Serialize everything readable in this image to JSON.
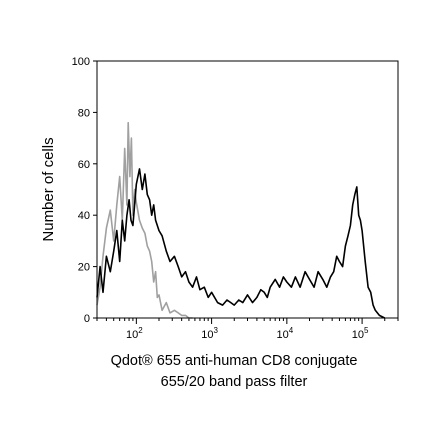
{
  "chart_data": {
    "type": "line",
    "title": "",
    "xlabel": "Qdot® 655 anti-human CD8 conjugate",
    "xlabel_line2": "655/20 band pass filter",
    "ylabel": "Number of cells",
    "xscale": "log",
    "xlim": [
      30,
      300000
    ],
    "ylim": [
      0,
      100
    ],
    "y_ticks": [
      0,
      20,
      40,
      60,
      80,
      100
    ],
    "x_ticks": [
      {
        "value": 100,
        "base": "10",
        "exp": "2"
      },
      {
        "value": 1000,
        "base": "10",
        "exp": "3"
      },
      {
        "value": 10000,
        "base": "10",
        "exp": "4"
      },
      {
        "value": 100000,
        "base": "10",
        "exp": "5"
      }
    ],
    "grid": false,
    "legend": "none",
    "series": [
      {
        "color": "#a0a0a0",
        "x": [
          30,
          33,
          36,
          40,
          45,
          50,
          55,
          60,
          65,
          70,
          75,
          78,
          82,
          86,
          90,
          95,
          100,
          110,
          120,
          130,
          140,
          150,
          160,
          170,
          180,
          190,
          200,
          220,
          250,
          280,
          320,
          360,
          400,
          450,
          500,
          560
        ],
        "y": [
          5,
          12,
          24,
          35,
          42,
          30,
          44,
          55,
          38,
          66,
          44,
          76,
          55,
          70,
          40,
          50,
          45,
          38,
          35,
          33,
          28,
          26,
          22,
          14,
          18,
          8,
          9,
          3,
          6,
          2,
          3,
          2,
          1,
          1,
          0,
          0
        ]
      },
      {
        "color": "#000000",
        "x": [
          30,
          33,
          36,
          40,
          45,
          50,
          55,
          60,
          65,
          70,
          75,
          80,
          85,
          90,
          100,
          110,
          120,
          130,
          140,
          150,
          160,
          170,
          180,
          200,
          220,
          250,
          280,
          320,
          360,
          400,
          450,
          500,
          560,
          630,
          700,
          800,
          900,
          1000,
          1200,
          1400,
          1600,
          1800,
          2000,
          2300,
          2600,
          3000,
          3500,
          4000,
          4500,
          5000,
          5500,
          6000,
          7000,
          8000,
          9000,
          10000,
          11500,
          13000,
          15000,
          17500,
          20000,
          23000,
          26000,
          30000,
          34000,
          38000,
          42000,
          46000,
          50000,
          55000,
          60000,
          65000,
          70000,
          75000,
          80000,
          85000,
          90000,
          95000,
          100000,
          110000,
          120000,
          130000,
          140000,
          150000,
          170000,
          200000
        ],
        "y": [
          8,
          20,
          10,
          24,
          18,
          26,
          34,
          22,
          38,
          30,
          40,
          46,
          38,
          36,
          52,
          58,
          50,
          56,
          48,
          46,
          40,
          44,
          38,
          34,
          32,
          26,
          22,
          24,
          20,
          16,
          18,
          14,
          12,
          16,
          11,
          12,
          8,
          10,
          6,
          5,
          7,
          6,
          5,
          7,
          6,
          9,
          6,
          8,
          11,
          10,
          8,
          12,
          15,
          12,
          16,
          14,
          12,
          16,
          12,
          18,
          15,
          12,
          18,
          15,
          12,
          16,
          18,
          24,
          22,
          20,
          28,
          32,
          36,
          44,
          48,
          51,
          40,
          38,
          34,
          22,
          12,
          10,
          5,
          3,
          1,
          0
        ]
      }
    ]
  }
}
